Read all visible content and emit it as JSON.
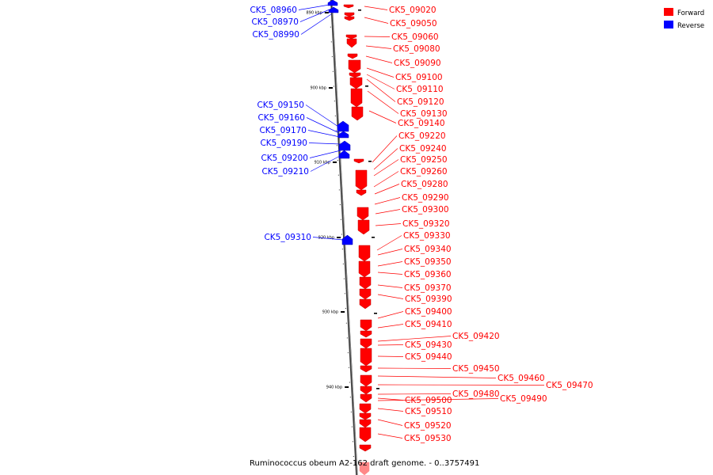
{
  "caption": "Ruminococcus obeum A2-162 draft genome. - 0..3757491",
  "legend": {
    "forward_label": "Forward",
    "reverse_label": "Reverse",
    "forward_color": "#ff0000",
    "reverse_color": "#0000ff"
  },
  "ticks": [
    "890 kbp",
    "900 kbp",
    "910 kbp",
    "920 kbp",
    "930 kbp",
    "940 kbp"
  ],
  "reverse_genes": [
    "CK5_08960",
    "CK5_08970",
    "CK5_08990",
    "CK5_09150",
    "CK5_09160",
    "CK5_09170",
    "CK5_09190",
    "CK5_09200",
    "CK5_09210",
    "CK5_09310"
  ],
  "forward_genes": [
    "CK5_09020",
    "CK5_09050",
    "CK5_09060",
    "CK5_09080",
    "CK5_09090",
    "CK5_09100",
    "CK5_09110",
    "CK5_09120",
    "CK5_09130",
    "CK5_09140",
    "CK5_09220",
    "CK5_09240",
    "CK5_09250",
    "CK5_09260",
    "CK5_09280",
    "CK5_09290",
    "CK5_09300",
    "CK5_09320",
    "CK5_09330",
    "CK5_09340",
    "CK5_09350",
    "CK5_09360",
    "CK5_09370",
    "CK5_09390",
    "CK5_09400",
    "CK5_09410",
    "CK5_09420",
    "CK5_09430",
    "CK5_09440",
    "CK5_09450",
    "CK5_09460",
    "CK5_09470",
    "CK5_09480",
    "CK5_09500",
    "CK5_09490",
    "CK5_09510",
    "CK5_09520",
    "CK5_09530"
  ]
}
